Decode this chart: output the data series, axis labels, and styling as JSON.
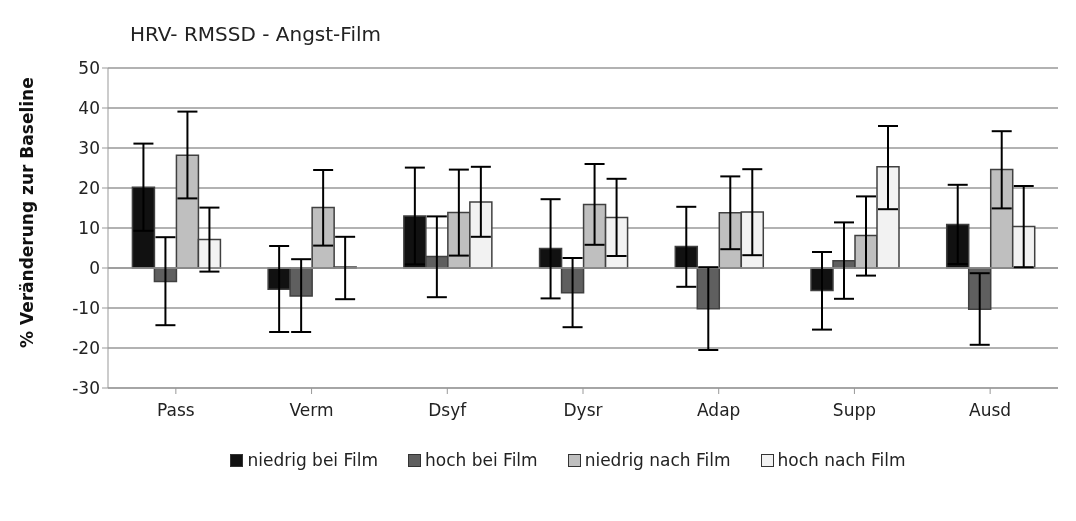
{
  "chart_data": {
    "type": "bar",
    "title": "HRV- RMSSD - Angst-Film",
    "ylabel": "% Veränderung zur Baseline",
    "categories": [
      "Pass",
      "Verm",
      "Dsyf",
      "Dysr",
      "Adap",
      "Supp",
      "Ausd"
    ],
    "series": [
      {
        "name": "niedrig bei Film",
        "color": "#111111",
        "values": [
          20.2,
          -5.3,
          13.0,
          4.9,
          5.4,
          -5.6,
          10.9
        ],
        "errors": [
          [
            9.3,
            31.1
          ],
          [
            -16.0,
            5.5
          ],
          [
            0.9,
            25.1
          ],
          [
            -7.6,
            17.2
          ],
          [
            -4.7,
            15.3
          ],
          [
            -15.4,
            4.0
          ],
          [
            1.0,
            20.8
          ]
        ]
      },
      {
        "name": "hoch bei Film",
        "color": "#5f5f5f",
        "values": [
          -3.4,
          -7.0,
          2.9,
          -6.2,
          -10.2,
          1.8,
          -10.3
        ],
        "errors": [
          [
            -14.3,
            7.7
          ],
          [
            -16.0,
            2.2
          ],
          [
            -7.3,
            12.9
          ],
          [
            -14.8,
            2.5
          ],
          [
            -20.5,
            0.2
          ],
          [
            -7.7,
            11.4
          ],
          [
            -19.2,
            -1.3
          ]
        ]
      },
      {
        "name": "niedrig nach Film",
        "color": "#bfbfbf",
        "values": [
          28.2,
          15.1,
          13.9,
          15.9,
          13.8,
          8.1,
          24.6
        ],
        "errors": [
          [
            17.4,
            39.1
          ],
          [
            5.6,
            24.5
          ],
          [
            3.1,
            24.6
          ],
          [
            5.8,
            26.0
          ],
          [
            4.7,
            22.9
          ],
          [
            -1.9,
            17.9
          ],
          [
            14.9,
            34.2
          ]
        ]
      },
      {
        "name": "hoch nach Film",
        "color": "#f2f2f2",
        "values": [
          7.1,
          0,
          16.5,
          12.6,
          14.0,
          25.3,
          10.4
        ],
        "errors": [
          [
            -0.9,
            15.1
          ],
          [
            -7.8,
            7.8
          ],
          [
            7.8,
            25.3
          ],
          [
            3.0,
            22.3
          ],
          [
            3.2,
            24.7
          ],
          [
            14.7,
            35.5
          ],
          [
            0.2,
            20.5
          ]
        ]
      }
    ],
    "ylim": [
      -30,
      50
    ],
    "yticks": [
      -30,
      -20,
      -10,
      0,
      10,
      20,
      30,
      40,
      50
    ],
    "grid": "y",
    "legend": "bottom"
  }
}
